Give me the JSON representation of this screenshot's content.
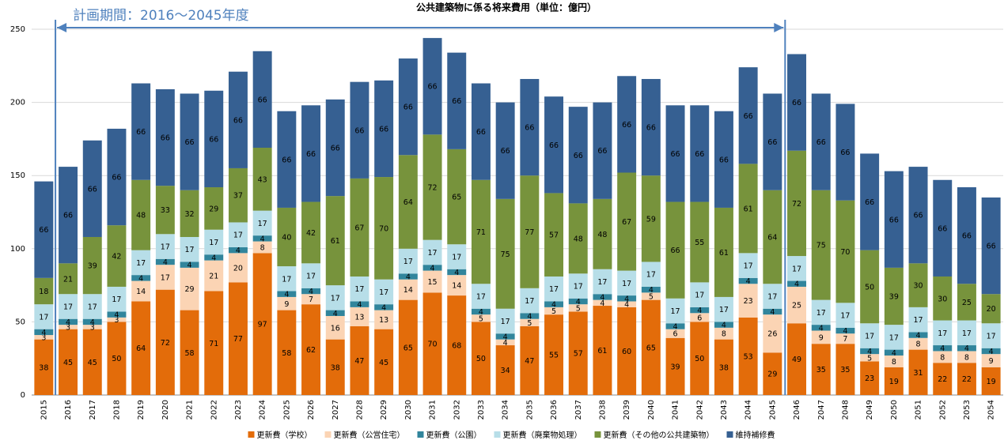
{
  "chart_data": {
    "type": "stacked_bar",
    "title": "公共建築物に係る将来費用（単位：億円）",
    "annotation": "計画期間：2016～2045年度",
    "categories": [
      "2015",
      "2016",
      "2017",
      "2018",
      "2019",
      "2020",
      "2021",
      "2022",
      "2023",
      "2024",
      "2025",
      "2026",
      "2027",
      "2028",
      "2029",
      "2030",
      "2031",
      "2032",
      "2033",
      "2034",
      "2035",
      "2036",
      "2037",
      "2038",
      "2039",
      "2040",
      "2041",
      "2042",
      "2043",
      "2044",
      "2045",
      "2046",
      "2047",
      "2048",
      "2049",
      "2050",
      "2051",
      "2052",
      "2053",
      "2054"
    ],
    "series": [
      {
        "name": "更新費（学校）",
        "color": "#e36c0a",
        "values": [
          38,
          45,
          45,
          50,
          64,
          72,
          58,
          71,
          77,
          97,
          58,
          62,
          38,
          47,
          45,
          65,
          70,
          68,
          50,
          34,
          47,
          55,
          57,
          61,
          60,
          65,
          39,
          50,
          38,
          53,
          29,
          49,
          35,
          35,
          23,
          19,
          31,
          22,
          22,
          19
        ]
      },
      {
        "name": "更新費（公営住宅）",
        "color": "#fbd4b4",
        "values": [
          3,
          3,
          3,
          3,
          14,
          17,
          29,
          21,
          20,
          8,
          9,
          7,
          16,
          13,
          13,
          14,
          15,
          14,
          5,
          4,
          5,
          5,
          5,
          4,
          4,
          5,
          6,
          6,
          8,
          23,
          26,
          25,
          9,
          7,
          5,
          8,
          8,
          8,
          8,
          9
        ]
      },
      {
        "name": "更新費（公園）",
        "color": "#31859c",
        "values": [
          4,
          4,
          4,
          4,
          4,
          4,
          4,
          4,
          4,
          4,
          4,
          4,
          4,
          4,
          4,
          4,
          4,
          4,
          4,
          4,
          4,
          4,
          4,
          4,
          4,
          4,
          4,
          4,
          4,
          4,
          4,
          4,
          4,
          4,
          4,
          4,
          4,
          4,
          4,
          4
        ]
      },
      {
        "name": "更新費（廃棄物処理）",
        "color": "#b7dee8",
        "values": [
          17,
          17,
          17,
          17,
          17,
          17,
          17,
          17,
          17,
          17,
          17,
          17,
          17,
          17,
          17,
          17,
          17,
          17,
          17,
          17,
          17,
          17,
          17,
          17,
          17,
          17,
          17,
          17,
          17,
          17,
          17,
          17,
          17,
          17,
          17,
          17,
          17,
          17,
          17,
          17
        ]
      },
      {
        "name": "更新費（その他の公共建築物）",
        "color": "#77933c",
        "values": [
          18,
          21,
          39,
          42,
          48,
          33,
          32,
          29,
          37,
          43,
          40,
          42,
          61,
          67,
          70,
          64,
          72,
          65,
          71,
          75,
          77,
          57,
          48,
          48,
          67,
          59,
          66,
          55,
          61,
          61,
          64,
          72,
          75,
          70,
          50,
          39,
          30,
          30,
          25,
          20
        ]
      },
      {
        "name": "維持補修費",
        "color": "#366092",
        "values": [
          66,
          66,
          66,
          66,
          66,
          66,
          66,
          66,
          66,
          66,
          66,
          66,
          66,
          66,
          66,
          66,
          66,
          66,
          66,
          66,
          66,
          66,
          66,
          66,
          66,
          66,
          66,
          66,
          66,
          66,
          66,
          66,
          66,
          66,
          66,
          66,
          66,
          66,
          66,
          66
        ]
      }
    ],
    "ylim": [
      0,
      250
    ],
    "yticks": [
      0,
      50,
      100,
      150,
      200,
      250
    ],
    "grid": true,
    "legend": "bottom"
  }
}
